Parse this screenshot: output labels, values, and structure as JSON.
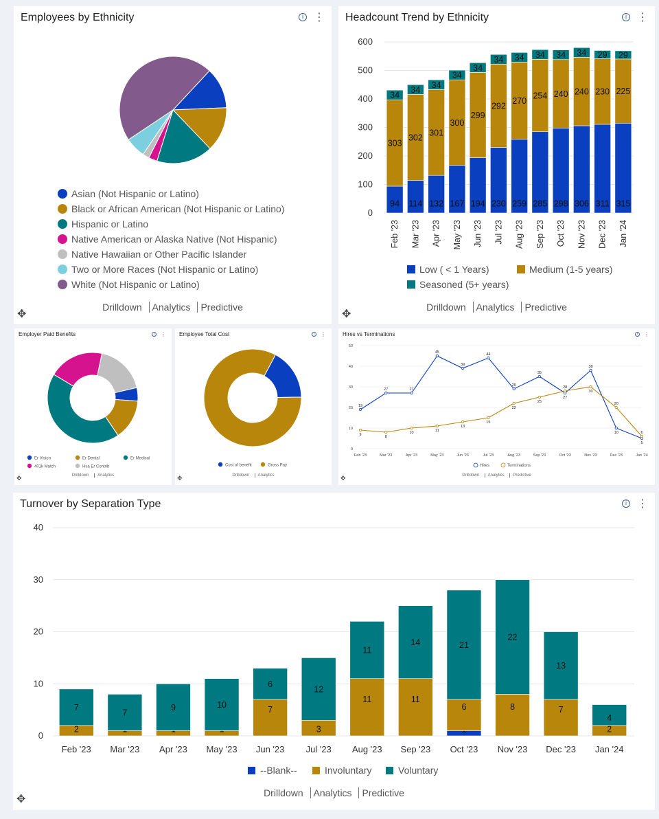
{
  "common": {
    "links": [
      "Drilldown",
      "Analytics",
      "Predictive"
    ],
    "info_glyph": "i",
    "more_glyph": "⋮",
    "move_glyph": "✥"
  },
  "colors": {
    "blue": "#0a3fbf",
    "gold": "#b8860b",
    "teal": "#007a80",
    "magenta": "#d6138e",
    "gray": "#bfbfbf",
    "lightblue": "#7ccfdf",
    "purple": "#835a8c"
  },
  "ethnicity": {
    "title": "Employees by Ethnicity",
    "chart_data": {
      "type": "pie",
      "labels": [
        "Asian (Not Hispanic or Latino)",
        "Black or African American (Not Hispanic or Latino)",
        "Hispanic or Latino",
        "Native American or Alaska Native (Not Hispanic)",
        "Native Hawaiian or Other Pacific Islander",
        "Two or More Races (Not Hispanic or Latino)",
        "White (Not Hispanic or Latino)"
      ],
      "values": [
        12.4,
        13.5,
        17.0,
        2.6,
        2.0,
        6.2,
        46.3
      ],
      "colors": [
        "#0a3fbf",
        "#b8860b",
        "#007a80",
        "#d6138e",
        "#bfbfbf",
        "#7ccfdf",
        "#835a8c"
      ]
    }
  },
  "headcount": {
    "title": "Headcount Trend by Ethnicity",
    "chart_data": {
      "type": "bar",
      "stacked": true,
      "categories": [
        "Feb '23",
        "Mar '23",
        "Apr '23",
        "May '23",
        "Jun '23",
        "Jul '23",
        "Aug '23",
        "Sep '23",
        "Oct '23",
        "Nov '23",
        "Dec '23",
        "Jan '24"
      ],
      "series": [
        {
          "name": "Low ( < 1 Years)",
          "color": "#0a3fbf",
          "values": [
            94,
            114,
            132,
            167,
            194,
            230,
            259,
            285,
            298,
            306,
            311,
            315
          ]
        },
        {
          "name": "Medium (1-5 years)",
          "color": "#b8860b",
          "values": [
            303,
            302,
            301,
            300,
            299,
            292,
            270,
            254,
            240,
            240,
            230,
            225
          ]
        },
        {
          "name": "Seasoned (5+ years)",
          "color": "#007a80",
          "values": [
            34,
            34,
            34,
            34,
            34,
            34,
            34,
            34,
            34,
            34,
            29,
            29
          ]
        }
      ],
      "yticks": [
        "0",
        "100",
        "200",
        "300",
        "400",
        "500",
        "600"
      ],
      "ylim": [
        0,
        600
      ]
    }
  },
  "benefits": {
    "title": "Employer Paid Benefits",
    "chart_data": {
      "type": "pie",
      "donut": true,
      "labels": [
        "Er Vision",
        "Er Dental",
        "Er Medical",
        "401k Match",
        "Hsa Er Contrib"
      ],
      "values": [
        4.5,
        13.5,
        40.5,
        18.5,
        17.0
      ],
      "colors": [
        "#0a3fbf",
        "#b8860b",
        "#007a80",
        "#d6138e",
        "#bfbfbf"
      ]
    }
  },
  "totalcost": {
    "title": "Employee Total Cost",
    "chart_data": {
      "type": "pie",
      "donut": true,
      "labels": [
        "Cost of benefit",
        "Gross Pay"
      ],
      "values": [
        17,
        83
      ],
      "colors": [
        "#0a3fbf",
        "#b8860b"
      ]
    }
  },
  "hires": {
    "title": "Hires vs Terminations",
    "chart_data": {
      "type": "line",
      "categories": [
        "Feb '23",
        "Mar '23",
        "Apr '23",
        "May '23",
        "Jun '23",
        "Jul '23",
        "Aug '23",
        "Sep '23",
        "Oct '23",
        "Nov '23",
        "Dec '23",
        "Jan '24"
      ],
      "series": [
        {
          "name": "Hires",
          "color": "#0a3fbf",
          "values": [
            19,
            27,
            27,
            45,
            39,
            44,
            29,
            35,
            27,
            38,
            10,
            5
          ]
        },
        {
          "name": "Terminations",
          "color": "#b8860b",
          "values": [
            9,
            8,
            10,
            11,
            13,
            15,
            22,
            25,
            28,
            30,
            20,
            6
          ]
        }
      ],
      "yticks": [
        "0",
        "10",
        "20",
        "30",
        "40",
        "50"
      ],
      "ylim": [
        0,
        50
      ]
    }
  },
  "turnover": {
    "title": "Turnover by Separation Type",
    "chart_data": {
      "type": "bar",
      "stacked": true,
      "categories": [
        "Feb '23",
        "Mar '23",
        "Apr '23",
        "May '23",
        "Jun '23",
        "Jul '23",
        "Aug '23",
        "Sep '23",
        "Oct '23",
        "Nov '23",
        "Dec '23",
        "Jan '24"
      ],
      "series": [
        {
          "name": "--Blank--",
          "color": "#0a3fbf",
          "values": [
            0,
            0,
            0,
            0,
            0,
            0,
            0,
            0,
            1,
            0,
            0,
            0
          ]
        },
        {
          "name": "Involuntary",
          "color": "#b8860b",
          "values": [
            2,
            1,
            1,
            1,
            7,
            3,
            11,
            11,
            6,
            8,
            7,
            2
          ]
        },
        {
          "name": "Voluntary",
          "color": "#007a80",
          "values": [
            7,
            7,
            9,
            10,
            6,
            12,
            11,
            14,
            21,
            22,
            13,
            4
          ]
        }
      ],
      "yticks": [
        "0",
        "10",
        "20",
        "30",
        "40"
      ],
      "ylim": [
        0,
        40
      ]
    }
  }
}
